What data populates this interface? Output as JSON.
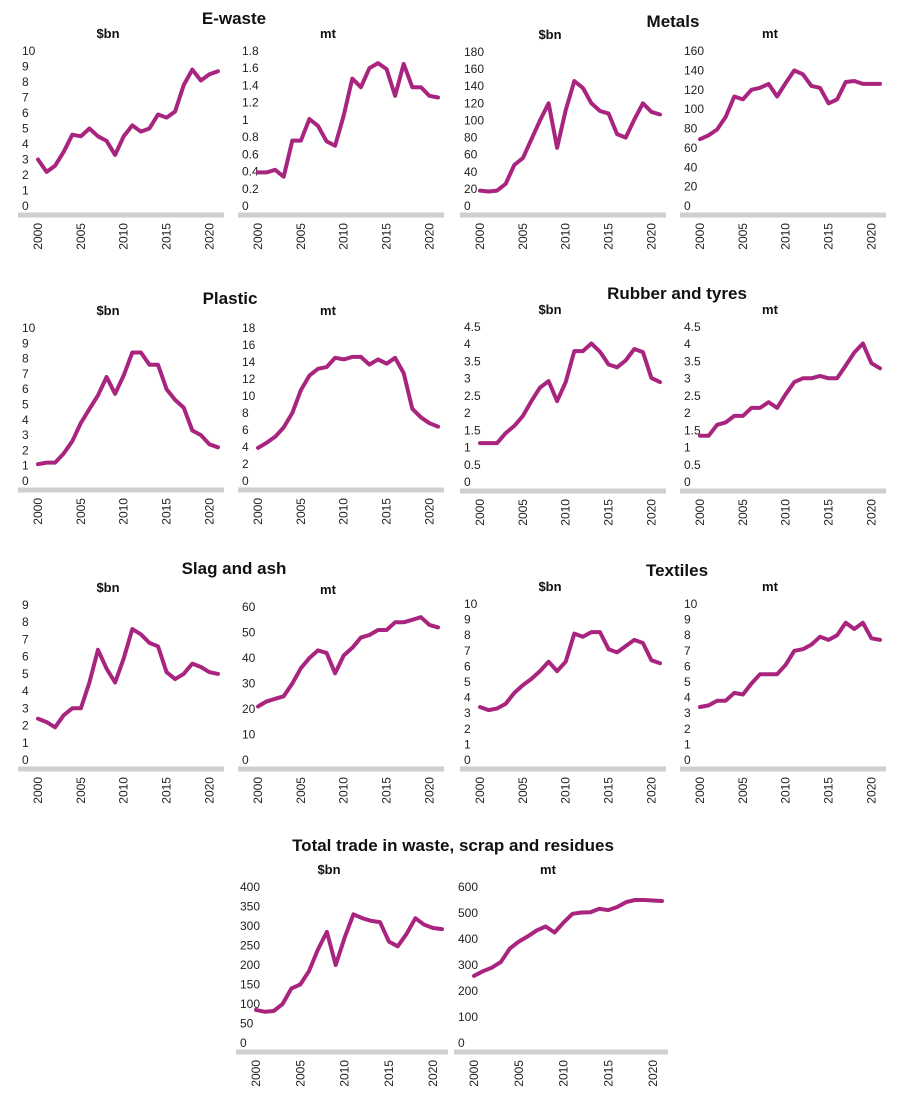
{
  "colors": {
    "series": "#a8247f",
    "axis": "#cfcfcf"
  },
  "chart_data": [
    {
      "group": "E-waste",
      "title": "$bn",
      "type": "line",
      "x": [
        2000,
        2001,
        2002,
        2003,
        2004,
        2005,
        2006,
        2007,
        2008,
        2009,
        2010,
        2011,
        2012,
        2013,
        2014,
        2015,
        2016,
        2017,
        2018,
        2019,
        2020,
        2021
      ],
      "xticks": [
        "2000",
        "2005",
        "2010",
        "2015",
        "2020"
      ],
      "yticks": [
        "0",
        "1",
        "2",
        "3",
        "4",
        "5",
        "6",
        "7",
        "8",
        "9",
        "10"
      ],
      "ylim": [
        0,
        10
      ],
      "series": [
        {
          "values": [
            3.0,
            2.2,
            2.6,
            3.5,
            4.6,
            4.5,
            5.0,
            4.5,
            4.2,
            3.3,
            4.5,
            5.2,
            4.8,
            5.0,
            5.9,
            5.7,
            6.1,
            7.8,
            8.8,
            8.1,
            8.5,
            8.7
          ]
        }
      ]
    },
    {
      "group": "E-waste",
      "title": "mt",
      "type": "line",
      "x": [
        2000,
        2001,
        2002,
        2003,
        2004,
        2005,
        2006,
        2007,
        2008,
        2009,
        2010,
        2011,
        2012,
        2013,
        2014,
        2015,
        2016,
        2017,
        2018,
        2019,
        2020,
        2021
      ],
      "xticks": [
        "2000",
        "2005",
        "2010",
        "2015",
        "2020"
      ],
      "yticks": [
        "0",
        "0.2",
        "0.4",
        "0.6",
        "0.8",
        "1",
        "1.2",
        "1.4",
        "1.6",
        "1.8"
      ],
      "ylim": [
        0,
        1.8
      ],
      "series": [
        {
          "values": [
            0.39,
            0.39,
            0.42,
            0.34,
            0.76,
            0.76,
            1.01,
            0.93,
            0.75,
            0.7,
            1.05,
            1.48,
            1.38,
            1.6,
            1.66,
            1.59,
            1.28,
            1.65,
            1.38,
            1.38,
            1.28,
            1.26
          ]
        }
      ]
    },
    {
      "group": "Metals",
      "title": "$bn",
      "type": "line",
      "x": [
        2000,
        2001,
        2002,
        2003,
        2004,
        2005,
        2006,
        2007,
        2008,
        2009,
        2010,
        2011,
        2012,
        2013,
        2014,
        2015,
        2016,
        2017,
        2018,
        2019,
        2020,
        2021
      ],
      "xticks": [
        "2000",
        "2005",
        "2010",
        "2015",
        "2020"
      ],
      "yticks": [
        "0",
        "20",
        "40",
        "60",
        "80",
        "100",
        "120",
        "140",
        "160",
        "180"
      ],
      "ylim": [
        0,
        180
      ],
      "series": [
        {
          "values": [
            18,
            17,
            18,
            26,
            48,
            56,
            78,
            100,
            120,
            68,
            112,
            146,
            138,
            120,
            111,
            108,
            84,
            80,
            101,
            120,
            110,
            107
          ]
        }
      ]
    },
    {
      "group": "Metals",
      "title": "mt",
      "type": "line",
      "x": [
        2000,
        2001,
        2002,
        2003,
        2004,
        2005,
        2006,
        2007,
        2008,
        2009,
        2010,
        2011,
        2012,
        2013,
        2014,
        2015,
        2016,
        2017,
        2018,
        2019,
        2020,
        2021
      ],
      "xticks": [
        "2000",
        "2005",
        "2010",
        "2015",
        "2020"
      ],
      "yticks": [
        "0",
        "20",
        "40",
        "60",
        "80",
        "100",
        "120",
        "140",
        "160"
      ],
      "ylim": [
        0,
        160
      ],
      "series": [
        {
          "values": [
            69,
            73,
            79,
            92,
            113,
            110,
            120,
            122,
            126,
            113,
            127,
            140,
            136,
            124,
            122,
            106,
            110,
            128,
            129,
            126,
            126,
            126
          ]
        }
      ]
    },
    {
      "group": "Plastic",
      "title": "$bn",
      "type": "line",
      "x": [
        2000,
        2001,
        2002,
        2003,
        2004,
        2005,
        2006,
        2007,
        2008,
        2009,
        2010,
        2011,
        2012,
        2013,
        2014,
        2015,
        2016,
        2017,
        2018,
        2019,
        2020,
        2021
      ],
      "xticks": [
        "2000",
        "2005",
        "2010",
        "2015",
        "2020"
      ],
      "yticks": [
        "0",
        "1",
        "2",
        "3",
        "4",
        "5",
        "6",
        "7",
        "8",
        "9",
        "10"
      ],
      "ylim": [
        0,
        10
      ],
      "series": [
        {
          "values": [
            1.1,
            1.2,
            1.2,
            1.8,
            2.6,
            3.8,
            4.7,
            5.6,
            6.8,
            5.7,
            6.9,
            8.4,
            8.4,
            7.6,
            7.6,
            6.0,
            5.3,
            4.8,
            3.3,
            3.0,
            2.4,
            2.2
          ]
        }
      ]
    },
    {
      "group": "Plastic",
      "title": "mt",
      "type": "line",
      "x": [
        2000,
        2001,
        2002,
        2003,
        2004,
        2005,
        2006,
        2007,
        2008,
        2009,
        2010,
        2011,
        2012,
        2013,
        2014,
        2015,
        2016,
        2017,
        2018,
        2019,
        2020,
        2021
      ],
      "xticks": [
        "2000",
        "2005",
        "2010",
        "2015",
        "2020"
      ],
      "yticks": [
        "0",
        "2",
        "4",
        "6",
        "8",
        "10",
        "12",
        "14",
        "16",
        "18"
      ],
      "ylim": [
        0,
        18
      ],
      "series": [
        {
          "values": [
            3.9,
            4.5,
            5.2,
            6.3,
            8.0,
            10.7,
            12.4,
            13.2,
            13.4,
            14.5,
            14.3,
            14.6,
            14.6,
            13.7,
            14.3,
            13.8,
            14.5,
            12.7,
            8.5,
            7.5,
            6.8,
            6.4
          ]
        }
      ]
    },
    {
      "group": "Rubber and tyres",
      "title": "$bn",
      "type": "line",
      "x": [
        2000,
        2001,
        2002,
        2003,
        2004,
        2005,
        2006,
        2007,
        2008,
        2009,
        2010,
        2011,
        2012,
        2013,
        2014,
        2015,
        2016,
        2017,
        2018,
        2019,
        2020,
        2021
      ],
      "xticks": [
        "2000",
        "2005",
        "2010",
        "2015",
        "2020"
      ],
      "yticks": [
        "0",
        "0.5",
        "1",
        "1.5",
        "2",
        "2.5",
        "3",
        "3.5",
        "4",
        "4.5"
      ],
      "ylim": [
        0,
        4.5
      ],
      "series": [
        {
          "values": [
            1.13,
            1.13,
            1.13,
            1.42,
            1.63,
            1.92,
            2.35,
            2.74,
            2.93,
            2.35,
            2.9,
            3.8,
            3.8,
            4.02,
            3.78,
            3.41,
            3.33,
            3.53,
            3.86,
            3.77,
            3.02,
            2.9
          ]
        }
      ]
    },
    {
      "group": "Rubber and tyres",
      "title": "mt",
      "type": "line",
      "x": [
        2000,
        2001,
        2002,
        2003,
        2004,
        2005,
        2006,
        2007,
        2008,
        2009,
        2010,
        2011,
        2012,
        2013,
        2014,
        2015,
        2016,
        2017,
        2018,
        2019,
        2020,
        2021
      ],
      "xticks": [
        "2000",
        "2005",
        "2010",
        "2015",
        "2020"
      ],
      "yticks": [
        "0",
        "0.5",
        "1",
        "1.5",
        "2",
        "2.5",
        "3",
        "3.5",
        "4",
        "4.5"
      ],
      "ylim": [
        0,
        4.5
      ],
      "series": [
        {
          "values": [
            1.34,
            1.34,
            1.66,
            1.73,
            1.92,
            1.92,
            2.15,
            2.15,
            2.32,
            2.15,
            2.55,
            2.9,
            3.01,
            3.01,
            3.08,
            3.01,
            3.01,
            3.38,
            3.76,
            4.02,
            3.45,
            3.3
          ]
        }
      ]
    },
    {
      "group": "Slag and ash",
      "title": "$bn",
      "type": "line",
      "x": [
        2000,
        2001,
        2002,
        2003,
        2004,
        2005,
        2006,
        2007,
        2008,
        2009,
        2010,
        2011,
        2012,
        2013,
        2014,
        2015,
        2016,
        2017,
        2018,
        2019,
        2020,
        2021
      ],
      "xticks": [
        "2000",
        "2005",
        "2010",
        "2015",
        "2020"
      ],
      "yticks": [
        "0",
        "1",
        "2",
        "3",
        "4",
        "5",
        "6",
        "7",
        "8",
        "9"
      ],
      "ylim": [
        0,
        9
      ],
      "series": [
        {
          "values": [
            2.4,
            2.2,
            1.9,
            2.6,
            3.0,
            3.0,
            4.5,
            6.4,
            5.3,
            4.5,
            5.9,
            7.6,
            7.3,
            6.8,
            6.6,
            5.1,
            4.7,
            5.0,
            5.6,
            5.4,
            5.1,
            5.0
          ]
        }
      ]
    },
    {
      "group": "Slag and ash",
      "title": "mt",
      "type": "line",
      "x": [
        2000,
        2001,
        2002,
        2003,
        2004,
        2005,
        2006,
        2007,
        2008,
        2009,
        2010,
        2011,
        2012,
        2013,
        2014,
        2015,
        2016,
        2017,
        2018,
        2019,
        2020,
        2021
      ],
      "xticks": [
        "2000",
        "2005",
        "2010",
        "2015",
        "2020"
      ],
      "yticks": [
        "0",
        "10",
        "20",
        "30",
        "40",
        "50",
        "60"
      ],
      "ylim": [
        0,
        60
      ],
      "series": [
        {
          "values": [
            21,
            23,
            24,
            25,
            30,
            36,
            40,
            43,
            42,
            34,
            41,
            44,
            48,
            49,
            51,
            51,
            54,
            54,
            55,
            56,
            53,
            52
          ]
        }
      ]
    },
    {
      "group": "Textiles",
      "title": "$bn",
      "type": "line",
      "x": [
        2000,
        2001,
        2002,
        2003,
        2004,
        2005,
        2006,
        2007,
        2008,
        2009,
        2010,
        2011,
        2012,
        2013,
        2014,
        2015,
        2016,
        2017,
        2018,
        2019,
        2020,
        2021
      ],
      "xticks": [
        "2000",
        "2005",
        "2010",
        "2015",
        "2020"
      ],
      "yticks": [
        "0",
        "1",
        "2",
        "3",
        "4",
        "5",
        "6",
        "7",
        "8",
        "9",
        "10"
      ],
      "ylim": [
        0,
        10
      ],
      "series": [
        {
          "values": [
            3.4,
            3.2,
            3.3,
            3.6,
            4.3,
            4.8,
            5.2,
            5.7,
            6.3,
            5.7,
            6.3,
            8.1,
            7.9,
            8.2,
            8.2,
            7.1,
            6.9,
            7.3,
            7.7,
            7.5,
            6.4,
            6.2
          ]
        }
      ]
    },
    {
      "group": "Textiles",
      "title": "mt",
      "type": "line",
      "x": [
        2000,
        2001,
        2002,
        2003,
        2004,
        2005,
        2006,
        2007,
        2008,
        2009,
        2010,
        2011,
        2012,
        2013,
        2014,
        2015,
        2016,
        2017,
        2018,
        2019,
        2020,
        2021
      ],
      "xticks": [
        "2000",
        "2005",
        "2010",
        "2015",
        "2020"
      ],
      "yticks": [
        "0",
        "1",
        "2",
        "3",
        "4",
        "5",
        "6",
        "7",
        "8",
        "9",
        "10"
      ],
      "ylim": [
        0,
        10
      ],
      "series": [
        {
          "values": [
            3.4,
            3.5,
            3.8,
            3.8,
            4.3,
            4.2,
            4.9,
            5.5,
            5.5,
            5.5,
            6.1,
            7.0,
            7.1,
            7.4,
            7.9,
            7.7,
            8.0,
            8.8,
            8.4,
            8.8,
            7.8,
            7.7
          ]
        }
      ]
    },
    {
      "group": "Total trade in waste, scrap and residues",
      "title": "$bn",
      "type": "line",
      "x": [
        2000,
        2001,
        2002,
        2003,
        2004,
        2005,
        2006,
        2007,
        2008,
        2009,
        2010,
        2011,
        2012,
        2013,
        2014,
        2015,
        2016,
        2017,
        2018,
        2019,
        2020,
        2021
      ],
      "xticks": [
        "2000",
        "2005",
        "2010",
        "2015",
        "2020"
      ],
      "yticks": [
        "0",
        "50",
        "100",
        "150",
        "200",
        "250",
        "300",
        "350",
        "400"
      ],
      "ylim": [
        0,
        400
      ],
      "series": [
        {
          "values": [
            85,
            80,
            82,
            100,
            140,
            150,
            185,
            240,
            285,
            200,
            270,
            330,
            320,
            313,
            310,
            260,
            248,
            280,
            320,
            303,
            295,
            292
          ]
        }
      ]
    },
    {
      "group": "Total trade in waste, scrap and residues",
      "title": "mt",
      "type": "line",
      "x": [
        2000,
        2001,
        2002,
        2003,
        2004,
        2005,
        2006,
        2007,
        2008,
        2009,
        2010,
        2011,
        2012,
        2013,
        2014,
        2015,
        2016,
        2017,
        2018,
        2019,
        2020,
        2021
      ],
      "xticks": [
        "2000",
        "2005",
        "2010",
        "2015",
        "2020"
      ],
      "yticks": [
        "0",
        "100",
        "200",
        "300",
        "400",
        "500",
        "600"
      ],
      "ylim": [
        0,
        600
      ],
      "series": [
        {
          "values": [
            258,
            276,
            290,
            312,
            363,
            390,
            410,
            433,
            448,
            425,
            463,
            497,
            502,
            503,
            516,
            511,
            523,
            542,
            550,
            550,
            548,
            546
          ]
        }
      ]
    }
  ]
}
